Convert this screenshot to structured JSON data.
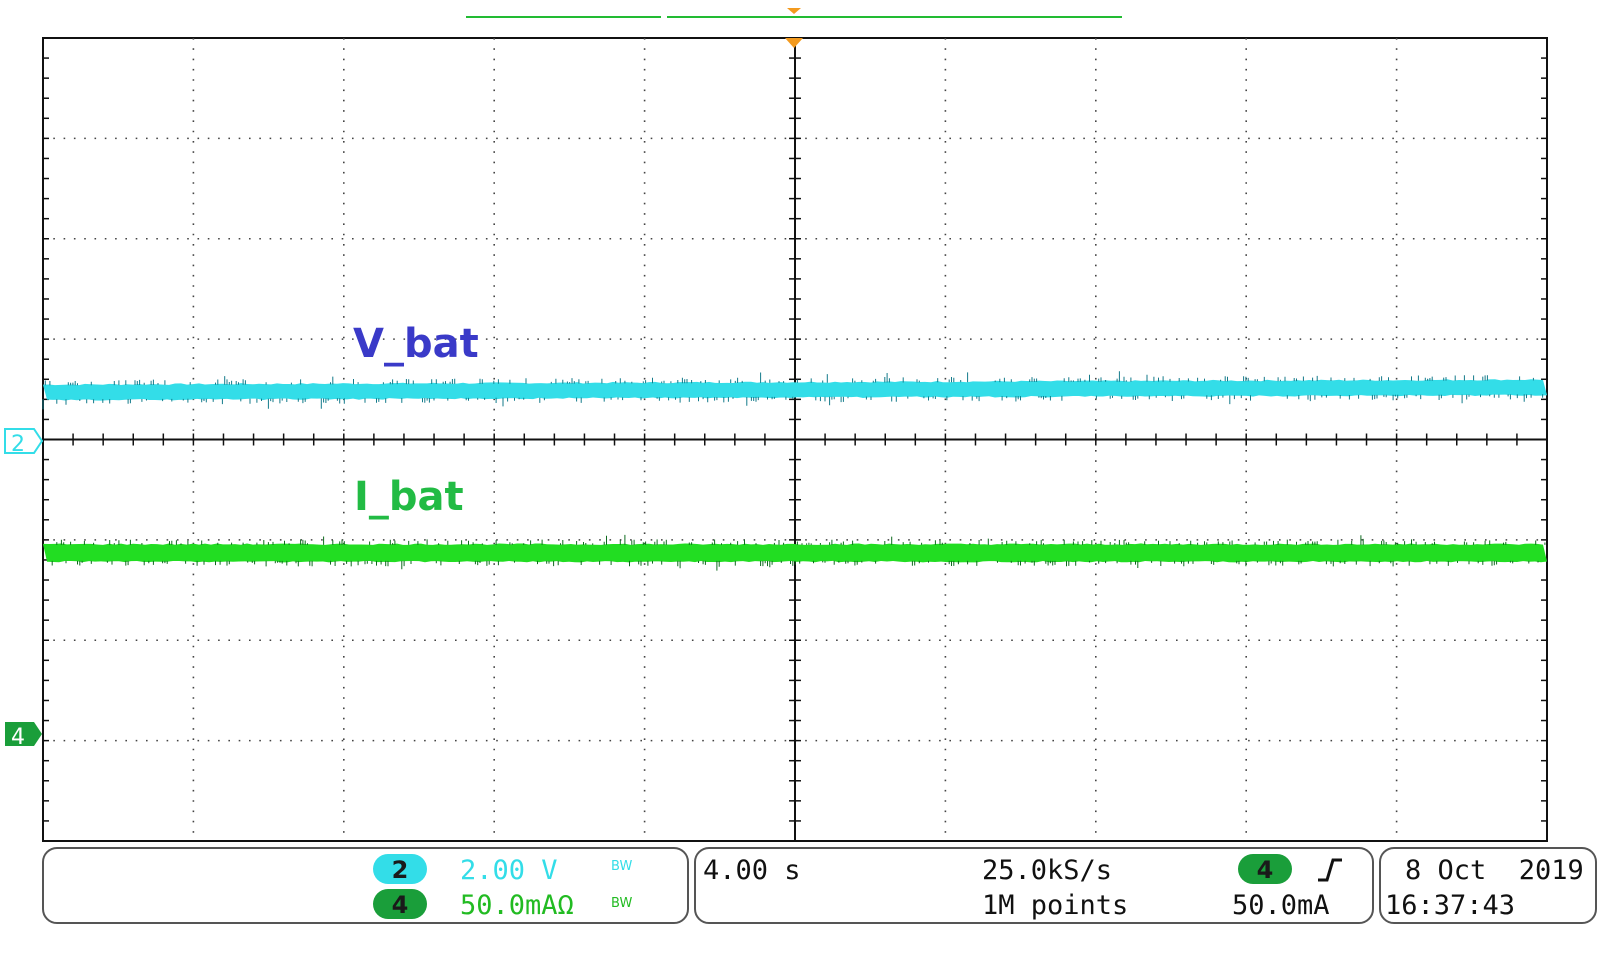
{
  "chart_data": {
    "type": "line",
    "title": "",
    "xlabel": "",
    "ylabel": "",
    "grid": true,
    "divisions": {
      "x": 10,
      "y": 8
    },
    "series": [
      {
        "name": "V_bat",
        "channel": "2",
        "color": "#33dde8",
        "label_color": "#3a3ac8",
        "level_div_above_marker": [
          0.47,
          0.52
        ],
        "volts_per_div": 2.0
      },
      {
        "name": "I_bat",
        "channel": "4",
        "color": "#22dd22",
        "label_color": "#22bb44",
        "level_div_above_marker": [
          1.87,
          1.87
        ],
        "amps_per_div": 0.05
      }
    ]
  },
  "trace_labels": {
    "v": "V_bat",
    "i": "I_bat"
  },
  "markers": {
    "ch2": "2",
    "ch4": "4"
  },
  "status": {
    "ch2_num": "2",
    "ch2_scale": "2.00 V",
    "ch4_num": "4",
    "ch4_scale": "50.0mAΩ",
    "bw": "BW",
    "timebase": "4.00 s",
    "sample_rate": "25.0kS/s",
    "points": "1M points",
    "trigger_channel": "4",
    "trigger_level": "50.0mA",
    "date": "8 Oct  2019",
    "time": "16:37:43"
  },
  "colors": {
    "ch2": "#33dde8",
    "ch4": "#22dd22",
    "badge4": "#1a9e3a",
    "trigger": "#f39a1e"
  }
}
